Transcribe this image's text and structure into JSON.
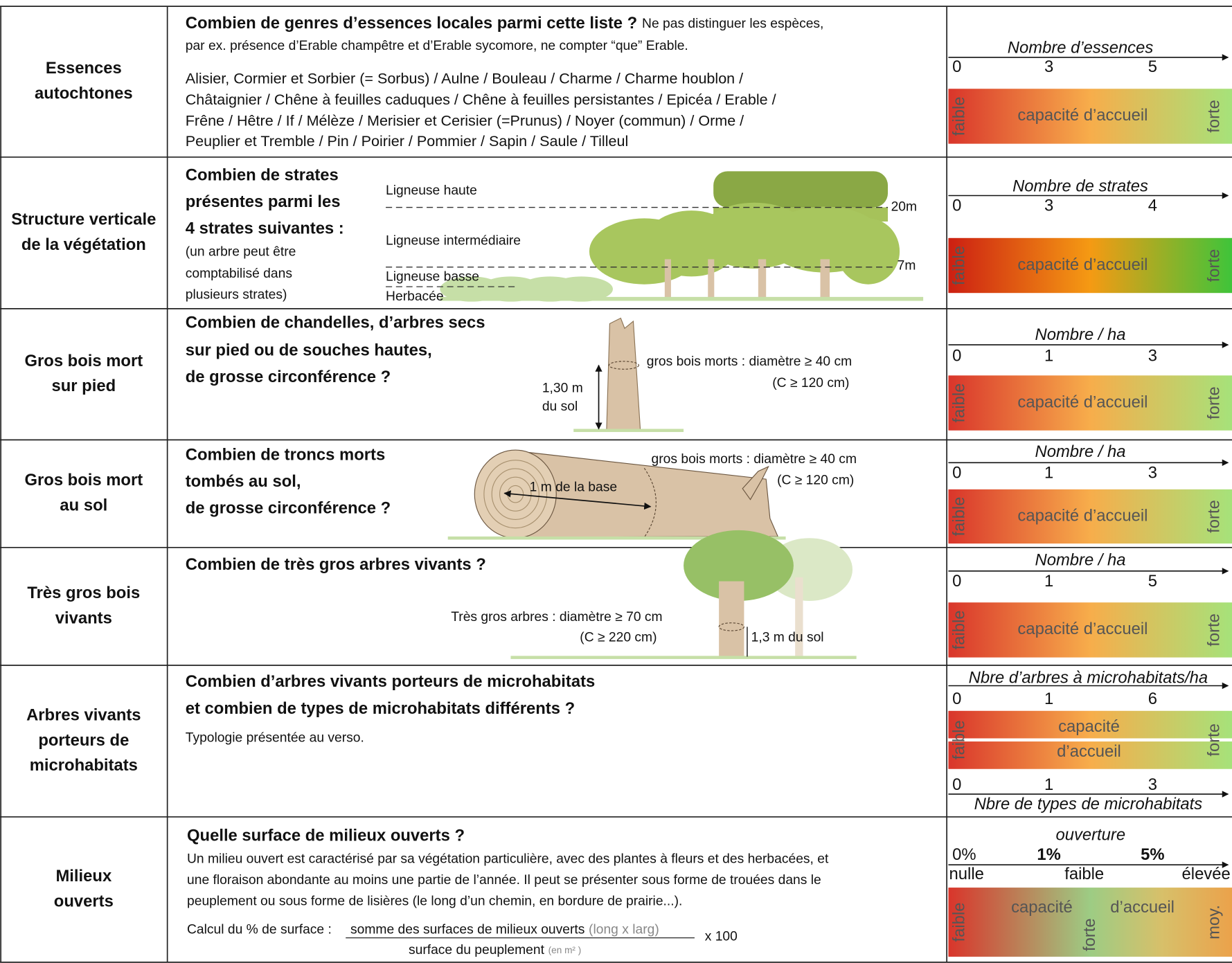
{
  "rows": [
    {
      "label": [
        "Essences",
        "autochtones"
      ],
      "question": [
        "Combien de genres d’essences locales parmi cette liste ?"
      ],
      "note": [
        "Ne pas distinguer les espèces,",
        "par ex. présence d’Erable champêtre et d’Erable sycomore, ne compter “que” Erable."
      ],
      "details": [
        "Alisier, Cormier et Sorbier (= Sorbus) / Aulne / Bouleau / Charme / Charme houblon /",
        "Châtaignier / Chêne à feuilles caduques / Chêne à feuilles persistantes / Epicéa / Erable /",
        "Frêne / Hêtre / If / Mélèze / Merisier et Cerisier (=Prunus) / Noyer (commun) / Orme /",
        "Peuplier et Tremble / Pin / Poirier / Pommier / Sapin / Saule / Tilleul"
      ],
      "scale": {
        "title": "Nombre d’essences",
        "ticks": [
          "0",
          "3",
          "5"
        ],
        "bar": [
          "faible",
          "capacité d’accueil",
          "forte"
        ]
      }
    },
    {
      "label": [
        "Structure verticale",
        "de la végétation"
      ],
      "question": [
        "Combien de strates",
        "présentes parmi les",
        "4 strates suivantes :"
      ],
      "note": [
        "(un arbre peut être",
        "comptabilisé dans",
        "plusieurs strates)"
      ],
      "figure": [
        "Ligneuse haute",
        "Ligneuse intermédiaire",
        "Ligneuse basse",
        "Herbacée",
        "20m",
        "7m"
      ],
      "scale": {
        "title": "Nombre de strates",
        "ticks": [
          "0",
          "3",
          "4"
        ],
        "bar": [
          "faible",
          "capacité d’accueil",
          "forte"
        ]
      }
    },
    {
      "label": [
        "Gros bois mort",
        "sur pied"
      ],
      "question": [
        "Combien de chandelles, d’arbres secs",
        "sur pied ou de souches hautes,",
        "de grosse circonférence ?"
      ],
      "figure": [
        "gros bois morts : diamètre ≥ 40 cm",
        "(C ≥ 120 cm)",
        "1,30 m",
        "du sol"
      ],
      "scale": {
        "title": "Nombre / ha",
        "ticks": [
          "0",
          "1",
          "3"
        ],
        "bar": [
          "faible",
          "capacité d’accueil",
          "forte"
        ]
      }
    },
    {
      "label": [
        "Gros bois mort",
        "au sol"
      ],
      "question": [
        "Combien de troncs morts",
        "tombés au sol,",
        "de grosse circonférence ?"
      ],
      "figure": [
        "gros bois morts : diamètre ≥ 40 cm",
        "(C ≥ 120 cm)",
        "1 m de la base"
      ],
      "scale": {
        "title": "Nombre / ha",
        "ticks": [
          "0",
          "1",
          "3"
        ],
        "bar": [
          "faible",
          "capacité d’accueil",
          "forte"
        ]
      }
    },
    {
      "label": [
        "Très gros bois",
        "vivants"
      ],
      "question": [
        "Combien de très gros arbres vivants ?"
      ],
      "figure": [
        "Très gros arbres : diamètre ≥ 70 cm",
        "(C ≥ 220 cm)",
        "1,3 m du sol"
      ],
      "scale": {
        "title": "Nombre / ha",
        "ticks": [
          "0",
          "1",
          "5"
        ],
        "bar": [
          "faible",
          "capacité d’accueil",
          "forte"
        ]
      }
    },
    {
      "label": [
        "Arbres vivants",
        "porteurs de",
        "microhabitats"
      ],
      "question": [
        "Combien d’arbres vivants porteurs de microhabitats",
        "et combien de types de microhabitats différents ?"
      ],
      "note": [
        "Typologie présentée au verso."
      ],
      "scale": {
        "title": "Nbre d’arbres à microhabitats/ha",
        "ticks": [
          "0",
          "1",
          "6"
        ],
        "bar": [
          "faible",
          "capacité",
          "d’accueil",
          "forte"
        ],
        "ticks2": [
          "0",
          "1",
          "3"
        ],
        "title2": "Nbre de types de microhabitats"
      }
    },
    {
      "label": [
        "Milieux",
        "ouverts"
      ],
      "question": [
        "Quelle surface de milieux ouverts ?"
      ],
      "note": [
        "Un milieu ouvert est caractérisé par sa végétation particulière, avec des plantes à fleurs et des herbacées, et",
        "une floraison abondante au moins une partie de l’année. Il peut se présenter sous forme de trouées dans le",
        "peuplement ou sous forme de lisières (le long d’un chemin, en bordure de prairie...)."
      ],
      "formula": {
        "label": "Calcul du % de surface :",
        "numerator": "somme des surfaces de milieux ouverts",
        "numerator_unit": "(long x larg)",
        "denominator": "surface du peuplement",
        "denominator_unit": "(en m² )",
        "factor": "x 100"
      },
      "scale": {
        "title": "ouverture",
        "ticks": [
          "0%",
          "1%",
          "5%"
        ],
        "levels": [
          "nulle",
          "faible",
          "élevée"
        ],
        "bar": [
          "faible",
          "capacité",
          "d’accueil",
          "forte",
          "moy."
        ]
      }
    }
  ]
}
